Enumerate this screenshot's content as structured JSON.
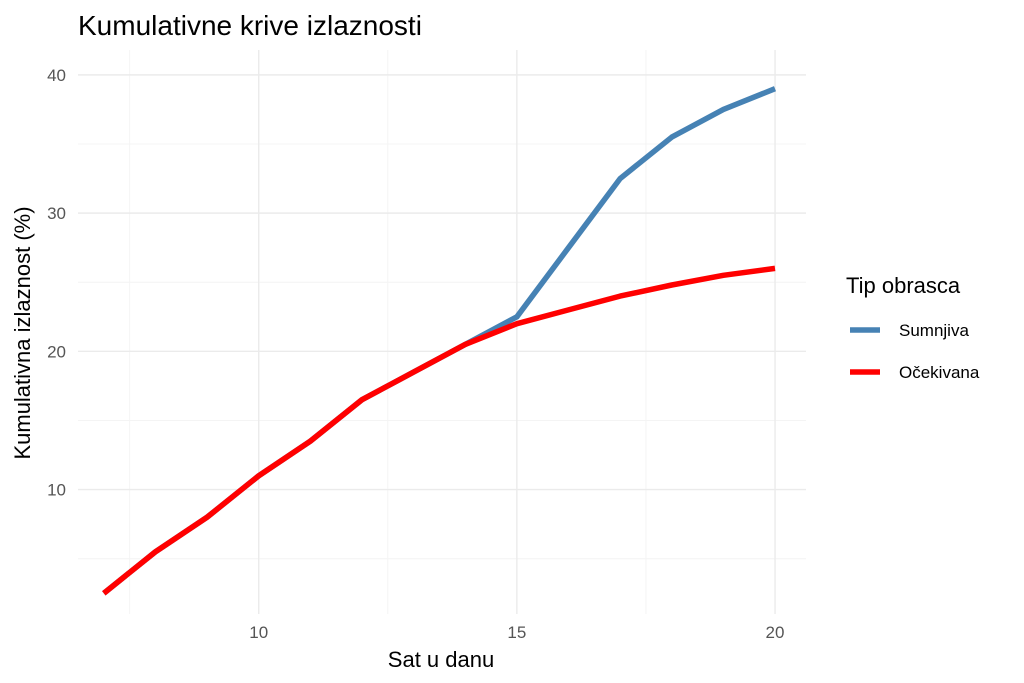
{
  "chart_data": {
    "type": "line",
    "title": "Kumulativne krive izlaznosti",
    "xlabel": "Sat u danu",
    "ylabel": "Kumulativna izlaznost (%)",
    "xlim": [
      6.5,
      20.6
    ],
    "ylim": [
      1.0,
      41.8
    ],
    "x_ticks": [
      10,
      15,
      20
    ],
    "y_ticks": [
      10,
      20,
      30,
      40
    ],
    "grid": true,
    "legend": {
      "title": "Tip obrasca",
      "position": "right"
    },
    "series": [
      {
        "name": "Sumnjiva",
        "color": "#4682b4",
        "x": [
          7,
          8,
          9,
          10,
          11,
          12,
          13,
          14,
          15,
          16,
          17,
          18,
          19,
          20
        ],
        "y": [
          2.5,
          5.5,
          8,
          11,
          13.5,
          16.5,
          18.5,
          20.5,
          22.5,
          27.5,
          32.5,
          35.5,
          37.5,
          39
        ]
      },
      {
        "name": "Očekivana",
        "color": "#ff0000",
        "x": [
          7,
          8,
          9,
          10,
          11,
          12,
          13,
          14,
          15,
          16,
          17,
          18,
          19,
          20
        ],
        "y": [
          2.5,
          5.5,
          8,
          11,
          13.5,
          16.5,
          18.5,
          20.5,
          22,
          23,
          24,
          24.8,
          25.5,
          26
        ]
      }
    ]
  }
}
